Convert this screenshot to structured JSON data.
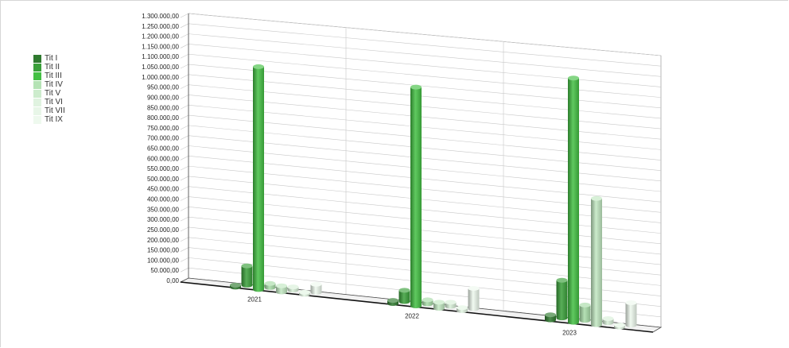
{
  "chart_data": {
    "type": "bar",
    "title": "",
    "xlabel": "",
    "ylabel": "",
    "ylim": [
      0,
      1300000
    ],
    "y_ticks": [
      "0,00",
      "50.000,00",
      "100.000,00",
      "150.000,00",
      "200.000,00",
      "250.000,00",
      "300.000,00",
      "350.000,00",
      "400.000,00",
      "450.000,00",
      "500.000,00",
      "550.000,00",
      "600.000,00",
      "650.000,00",
      "700.000,00",
      "750.000,00",
      "800.000,00",
      "850.000,00",
      "900.000,00",
      "950.000,00",
      "1.000.000,00",
      "1.050.000,00",
      "1.100.000,00",
      "1.150.000,00",
      "1.200.000,00",
      "1.250.000,00",
      "1.300.000,00"
    ],
    "categories": [
      "2021",
      "2022",
      "2023"
    ],
    "legend_position": "left",
    "grid": true,
    "style": "3d-cylinder",
    "series": [
      {
        "name": "Tit I",
        "color": "#2f7a2f",
        "values": [
          10000,
          15000,
          25000
        ]
      },
      {
        "name": "Tit II",
        "color": "#3aa03a",
        "values": [
          95000,
          55000,
          185000
        ]
      },
      {
        "name": "Tit III",
        "color": "#44c044",
        "values": [
          1095000,
          1075000,
          1200000
        ]
      },
      {
        "name": "Tit IV",
        "color": "#a8dca8",
        "values": [
          20000,
          20000,
          75000
        ]
      },
      {
        "name": "Tit V",
        "color": "#c2e8c2",
        "values": [
          30000,
          30000,
          620000
        ]
      },
      {
        "name": "Tit VI",
        "color": "#d8f0d8",
        "values": [
          15000,
          20000,
          20000
        ]
      },
      {
        "name": "Tit VII",
        "color": "#e3f5e3",
        "values": [
          10000,
          15000,
          10000
        ]
      },
      {
        "name": "Tit IX",
        "color": "#eef9ee",
        "values": [
          40000,
          100000,
          110000
        ]
      }
    ]
  }
}
